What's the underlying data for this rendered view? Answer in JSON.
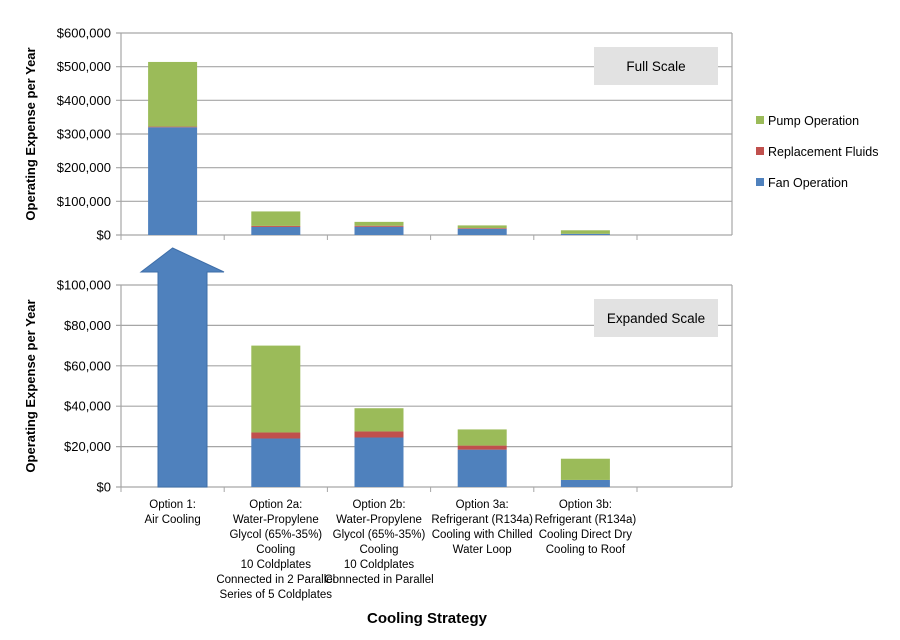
{
  "chart_data": {
    "type": "bar",
    "stacked": true,
    "categories": [
      [
        "Option 1:",
        "Air Cooling"
      ],
      [
        "Option 2a:",
        "Water-Propylene",
        "Glycol (65%-35%)",
        "Cooling",
        "10 Coldplates",
        "Connected in 2 Parallel",
        "Series of 5 Coldplates"
      ],
      [
        "Option 2b:",
        "Water-Propylene",
        "Glycol (65%-35%)",
        "Cooling",
        "10 Coldplates",
        "Connected in Parallel"
      ],
      [
        "Option 3a:",
        "Refrigerant (R134a)",
        "Cooling with Chilled",
        "Water Loop"
      ],
      [
        "Option 3b:",
        "Refrigerant (R134a)",
        "Cooling Direct Dry",
        "Cooling to Roof"
      ]
    ],
    "series": [
      {
        "name": "Fan Operation",
        "color": "#4F81BD",
        "values": [
          320000,
          24000,
          24500,
          18500,
          3500
        ]
      },
      {
        "name": "Replacement Fluids",
        "color": "#C0504D",
        "values": [
          2000,
          3000,
          3000,
          2000,
          0
        ]
      },
      {
        "name": "Pump Operation",
        "color": "#9BBB59",
        "values": [
          192000,
          43000,
          11500,
          8000,
          10500
        ]
      }
    ],
    "legend": {
      "placement": "right",
      "order": [
        "Pump Operation",
        "Replacement Fluids",
        "Fan Operation"
      ]
    },
    "xlabel": "Cooling Strategy",
    "panels": [
      {
        "name": "Full Scale",
        "label": "Full Scale",
        "ylabel": "Operating Expense per Year",
        "ylim": [
          0,
          600000
        ],
        "yticks": [
          0,
          100000,
          200000,
          300000,
          400000,
          500000,
          600000
        ],
        "ytick_labels": [
          "$0",
          "$100,000",
          "$200,000",
          "$300,000",
          "$400,000",
          "$500,000",
          "$600,000"
        ]
      },
      {
        "name": "Expanded Scale",
        "label": "Expanded Scale",
        "ylabel": "Operating Expense per Year",
        "ylim": [
          0,
          100000
        ],
        "yticks": [
          0,
          20000,
          40000,
          60000,
          80000,
          100000
        ],
        "ytick_labels": [
          "$0",
          "$20,000",
          "$40,000",
          "$60,000",
          "$80,000",
          "$100,000"
        ],
        "annotation": "Option 1 exceeds scale (up arrow)"
      }
    ],
    "grid": true
  }
}
